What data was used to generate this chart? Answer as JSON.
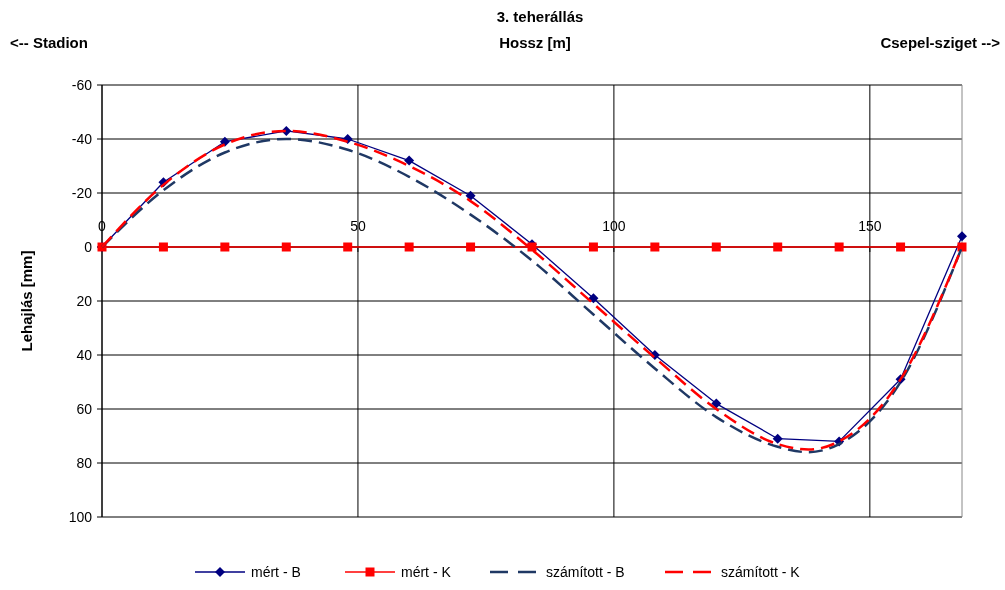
{
  "chart_data": {
    "type": "line",
    "title": "3. teherállás",
    "xlabel": "Hossz [m]",
    "ylabel": "Lehajlás [mm]",
    "annotations": [
      "<-- Stadion",
      "Csepel-sziget -->"
    ],
    "xlim": [
      0,
      168
    ],
    "xticks": [
      0,
      50,
      100,
      150
    ],
    "ylim": [
      100,
      -60
    ],
    "yticks": [
      -60,
      -40,
      -20,
      0,
      20,
      40,
      60,
      80,
      100
    ],
    "grid": true,
    "legend": "bottom",
    "series": [
      {
        "name": "mért - B",
        "color": "#000080",
        "marker": "diamond",
        "line_style": "solid",
        "x": [
          0,
          12,
          24,
          36,
          48,
          60,
          72,
          84,
          96,
          108,
          120,
          132,
          144,
          156,
          168
        ],
        "values": [
          0,
          -24,
          -39,
          -43,
          -40,
          -32,
          -19,
          -1,
          19,
          40,
          58,
          71,
          72,
          49,
          -4
        ]
      },
      {
        "name": "mért - K",
        "color": "#ff0000",
        "marker": "square",
        "line_style": "solid",
        "x": [
          0,
          12,
          24,
          36,
          48,
          60,
          72,
          84,
          96,
          108,
          120,
          132,
          144,
          156,
          168
        ],
        "values": [
          0,
          0,
          0,
          0,
          0,
          0,
          0,
          0,
          0,
          0,
          0,
          0,
          0,
          0,
          0
        ]
      },
      {
        "name": "számított - B",
        "color": "#1f3864",
        "marker": "none",
        "line_style": "dashed",
        "x": [
          0,
          12,
          24,
          36,
          48,
          60,
          72,
          84,
          96,
          108,
          120,
          132,
          138,
          144,
          156,
          168
        ],
        "values": [
          0,
          -21,
          -35,
          -40,
          -36,
          -26,
          -12,
          5,
          25,
          45,
          63,
          74,
          76,
          73,
          50,
          0
        ]
      },
      {
        "name": "számított - K",
        "color": "#ff0000",
        "marker": "none",
        "line_style": "dashed",
        "x": [
          0,
          12,
          24,
          36,
          48,
          60,
          72,
          84,
          96,
          108,
          120,
          132,
          138,
          144,
          156,
          168
        ],
        "values": [
          0,
          -23,
          -38,
          -43,
          -39,
          -30,
          -17,
          1,
          21,
          41,
          60,
          73,
          75,
          72,
          49,
          0
        ]
      }
    ]
  }
}
